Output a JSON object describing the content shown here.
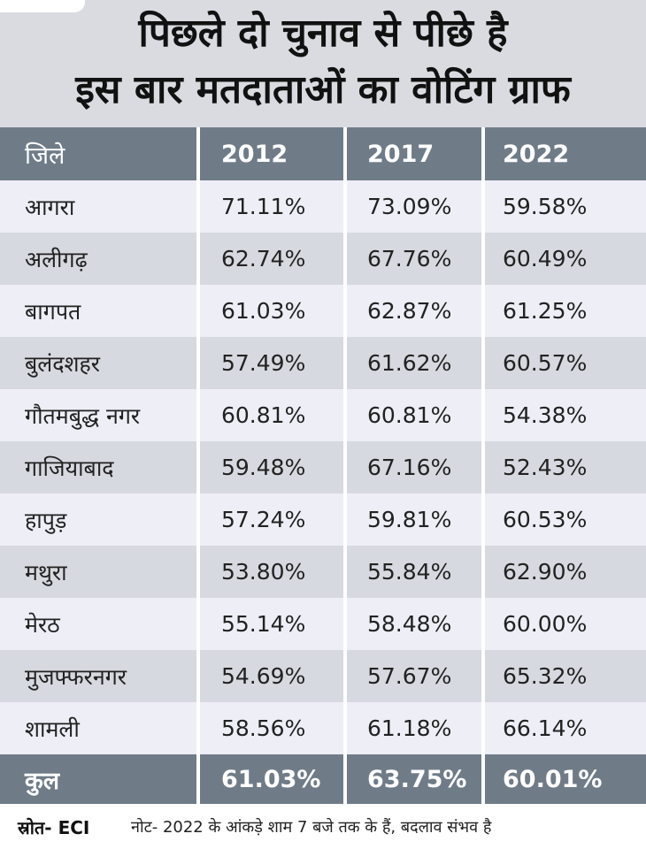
{
  "header": {
    "title_line1": "पिछले दो चुनाव से पीछे है",
    "title_line2": "इस बार मतदाताओं का वोटिंग ग्राफ"
  },
  "colors": {
    "header_bg": "#d9dbe0",
    "table_header_bg": "#6f7c88",
    "row_light": "#eeeef7",
    "row_dark": "#d6d9df"
  },
  "chart_data": {
    "type": "table",
    "columns": [
      "जिले",
      "2012",
      "2017",
      "2022"
    ],
    "rows": [
      [
        "आगरा",
        "71.11%",
        "73.09%",
        "59.58%"
      ],
      [
        "अलीगढ़",
        "62.74%",
        "67.76%",
        "60.49%"
      ],
      [
        "बागपत",
        "61.03%",
        "62.87%",
        "61.25%"
      ],
      [
        "बुलंदशहर",
        "57.49%",
        "61.62%",
        "60.57%"
      ],
      [
        "गौतमबुद्ध नगर",
        "60.81%",
        "60.81%",
        "54.38%"
      ],
      [
        "गाजियाबाद",
        "59.48%",
        "67.16%",
        "52.43%"
      ],
      [
        "हापुड़",
        "57.24%",
        "59.81%",
        "60.53%"
      ],
      [
        "मथुरा",
        "53.80%",
        "55.84%",
        "62.90%"
      ],
      [
        "मेरठ",
        "55.14%",
        "58.48%",
        "60.00%"
      ],
      [
        "मुजफ्फरनगर",
        "54.69%",
        "57.67%",
        "65.32%"
      ],
      [
        "शामली",
        "58.56%",
        "61.18%",
        "66.14%"
      ]
    ],
    "total": [
      "कुल",
      "61.03%",
      "63.75%",
      "60.01%"
    ]
  },
  "footer": {
    "source": "स्रोत- ECI",
    "note": "नोट- 2022 के आंकड़े शाम 7 बजे तक के हैं, बदलाव संभव है"
  }
}
